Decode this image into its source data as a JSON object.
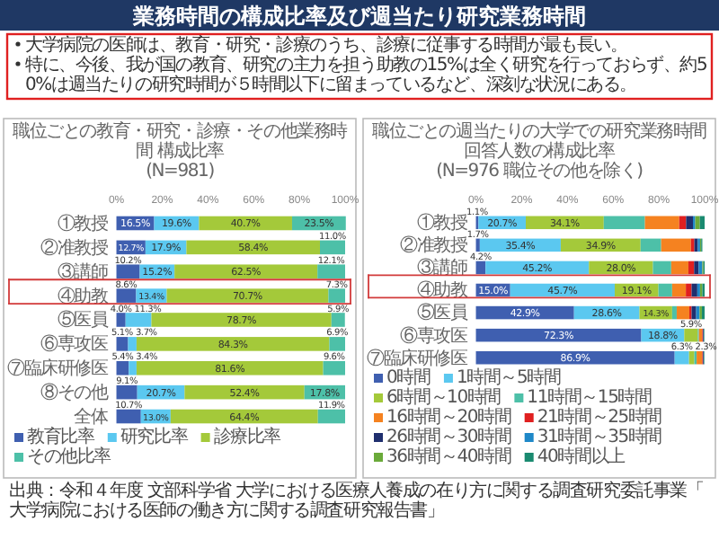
{
  "chart_data": [
    {
      "type": "other",
      "title": "業務時間の構成比率及び週当たり研究業務時間",
      "annotations": [
        "大学病院の医師は、教育・研究・診療のうち、診療に従事する時間が最も長い。",
        "特に、今後、我が国の教育、研究の主力を担う助教の15%は全く研究を行っておらず、約50%は週当たりの研究時間が５時間以下に留まっているなど、深刻な状況にある。",
        "出典：令和４年度 文部科学省 大学における医療人養成の在り方に関する調査研究委託事業「大学病院における医師の働き方に関する調査研究報告書」"
      ]
    },
    {
      "type": "bar",
      "orientation": "horizontal",
      "stacked": true,
      "title": "職位ごとの教育・研究・診療・その他業務時間 構成比率",
      "subtitle": "(N=981)",
      "legend": "bottom",
      "categories": [
        "①教授",
        "②准教授",
        "③講師",
        "④助教",
        "⑤医員",
        "⑥専攻医",
        "⑦臨床研修医",
        "⑧その他",
        "全体"
      ],
      "xlim": [
        0,
        100
      ],
      "xticks": [
        {
          "value": 0,
          "label": "0%"
        },
        {
          "value": 20,
          "label": "20%"
        },
        {
          "value": 40,
          "label": "40%"
        },
        {
          "value": 60,
          "label": "60%"
        },
        {
          "value": 80,
          "label": "80%"
        },
        {
          "value": 100,
          "label": "100%"
        }
      ],
      "series": [
        {
          "name": "教育比率",
          "color": "#3f5fb0",
          "values": [
            16.5,
            12.7,
            10.2,
            8.6,
            4.0,
            5.1,
            5.4,
            9.1,
            10.7
          ],
          "value_labels": [
            "16.5%",
            "12.7%",
            "10.2%",
            "8.6%",
            "4.0%",
            "5.1%",
            "5.4%",
            "9.1%",
            "10.7%"
          ]
        },
        {
          "name": "研究比率",
          "color": "#5bc8f0",
          "values": [
            19.6,
            17.9,
            15.2,
            13.4,
            11.3,
            3.7,
            3.4,
            20.7,
            13.0
          ],
          "value_labels": [
            "19.6%",
            "17.9%",
            "15.2%",
            "13.4%",
            "11.3%",
            "3.7%",
            "3.4%",
            "20.7%",
            "13.0%"
          ]
        },
        {
          "name": "診療比率",
          "color": "#a4c93a",
          "values": [
            40.7,
            58.4,
            62.5,
            70.7,
            78.7,
            84.3,
            81.6,
            52.4,
            64.4
          ],
          "value_labels": [
            "40.7%",
            "58.4%",
            "62.5%",
            "70.7%",
            "78.7%",
            "84.3%",
            "81.6%",
            "52.4%",
            "64.4%"
          ]
        },
        {
          "name": "その他比率",
          "color": "#4dc0a8",
          "values": [
            23.5,
            11.0,
            12.1,
            7.3,
            5.9,
            6.9,
            9.6,
            17.8,
            11.9
          ],
          "value_labels": [
            "23.5%",
            "11.0%",
            "12.1%",
            "7.3%",
            "5.9%",
            "6.9%",
            "9.6%",
            "17.8%",
            "11.9%"
          ]
        }
      ]
    },
    {
      "type": "bar",
      "orientation": "horizontal",
      "stacked": true,
      "title": "職位ごとの週当たりの大学での研究業務時間回答人数の構成比率",
      "subtitle": "(N=976 職位その他を除く)",
      "legend": "bottom",
      "categories": [
        "①教授",
        "②准教授",
        "③講師",
        "④助教",
        "⑤医員",
        "⑥専攻医",
        "⑦臨床研修医"
      ],
      "xlim": [
        0,
        100
      ],
      "xticks": [
        {
          "value": 0,
          "label": "0%"
        },
        {
          "value": 20,
          "label": "20%"
        },
        {
          "value": 40,
          "label": "40%"
        },
        {
          "value": 60,
          "label": "60%"
        },
        {
          "value": 80,
          "label": "80%"
        },
        {
          "value": 100,
          "label": "100%"
        }
      ],
      "series": [
        {
          "name": "0時間",
          "color": "#3f5fb0",
          "values": [
            1.1,
            1.7,
            4.2,
            15.0,
            42.9,
            72.3,
            86.9
          ],
          "value_labels": [
            "1.1%",
            "1.7%",
            "4.2%",
            "15.0%",
            "42.9%",
            "72.3%",
            "86.9%"
          ]
        },
        {
          "name": "1時間～5時間",
          "color": "#5bc8f0",
          "values": [
            20.7,
            35.4,
            45.2,
            45.7,
            28.6,
            18.8,
            6.3
          ],
          "value_labels": [
            "20.7%",
            "35.4%",
            "45.2%",
            "45.7%",
            "28.6%",
            "18.8%",
            "6.3%"
          ]
        },
        {
          "name": "6時間～10時間",
          "color": "#a4c93a",
          "values": [
            34.1,
            34.9,
            28.0,
            19.1,
            14.3,
            5.9,
            2.3
          ],
          "value_labels": [
            "34.1%",
            "34.9%",
            "28.0%",
            "19.1%",
            "14.3%",
            "5.9%",
            "2.3%"
          ]
        },
        {
          "name": "11時間～15時間",
          "color": "#4dc0a8",
          "values": [
            18,
            9,
            8,
            6,
            2,
            0.5,
            1
          ]
        },
        {
          "name": "16時間～20時間",
          "color": "#f58220",
          "values": [
            15,
            13,
            7.5,
            6,
            5.5,
            1.5,
            2.5
          ]
        },
        {
          "name": "21時間～25時間",
          "color": "#e02020",
          "values": [
            3,
            1.5,
            2.5,
            2.5,
            1,
            0.3,
            0.3
          ]
        },
        {
          "name": "26時間～30時間",
          "color": "#1f2f6e",
          "values": [
            3,
            1.5,
            2,
            2.5,
            2,
            0.3,
            0.3
          ]
        },
        {
          "name": "31時間～35時間",
          "color": "#1e88c8",
          "values": [
            1,
            1,
            1.6,
            1.2,
            1.5,
            0.2,
            0.2
          ]
        },
        {
          "name": "36時間～40時間",
          "color": "#6aaa3a",
          "values": [
            2,
            0.5,
            0.5,
            1,
            1,
            0.1,
            0.1
          ]
        },
        {
          "name": "40時間以上",
          "color": "#1a8a70",
          "values": [
            2.1,
            0.5,
            0.5,
            1,
            1.2,
            0.1,
            0.1
          ]
        }
      ]
    }
  ]
}
